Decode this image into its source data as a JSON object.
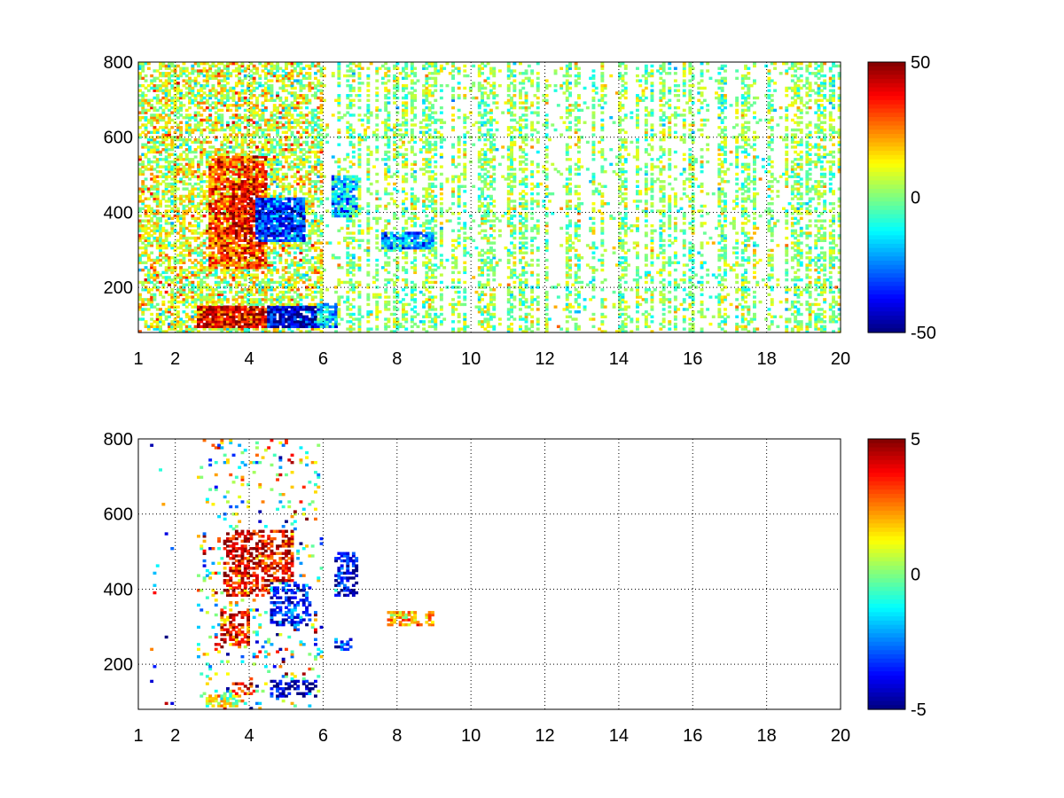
{
  "chart_data": [
    {
      "type": "heatmap",
      "title": "",
      "xlabel": "",
      "ylabel": "",
      "xlim": [
        1,
        20
      ],
      "ylim": [
        80,
        800
      ],
      "xticks": [
        1,
        2,
        4,
        6,
        8,
        10,
        12,
        14,
        16,
        18,
        20
      ],
      "yticks": [
        200,
        400,
        600,
        800
      ],
      "grid": true,
      "grid_x": [
        2,
        4,
        6,
        8,
        10,
        12,
        14,
        16,
        18,
        20
      ],
      "colormap": "jet",
      "colorbar": {
        "range": [
          -50,
          50
        ],
        "ticks": [
          50,
          0,
          -50
        ]
      },
      "density": "dense",
      "features": [
        {
          "x0": 2.9,
          "x1": 4.5,
          "y0": 250,
          "y1": 550,
          "value": 30
        },
        {
          "x0": 3.5,
          "x1": 4.2,
          "y0": 320,
          "y1": 480,
          "value": 38
        },
        {
          "x0": 4.2,
          "x1": 5.5,
          "y0": 320,
          "y1": 440,
          "value": -32
        },
        {
          "x0": 4.5,
          "x1": 5.8,
          "y0": 90,
          "y1": 150,
          "value": -42
        },
        {
          "x0": 2.6,
          "x1": 4.5,
          "y0": 90,
          "y1": 150,
          "value": 40
        },
        {
          "x0": 5.8,
          "x1": 6.4,
          "y0": 90,
          "y1": 160,
          "value": -20
        },
        {
          "x0": 7.6,
          "x1": 9.0,
          "y0": 300,
          "y1": 350,
          "value": -22
        },
        {
          "x0": 6.2,
          "x1": 6.9,
          "y0": 390,
          "y1": 500,
          "value": -16
        }
      ]
    },
    {
      "type": "heatmap",
      "title": "",
      "xlabel": "",
      "ylabel": "",
      "xlim": [
        1,
        20
      ],
      "ylim": [
        80,
        800
      ],
      "xticks": [
        1,
        2,
        4,
        6,
        8,
        10,
        12,
        14,
        16,
        18,
        20
      ],
      "yticks": [
        200,
        400,
        600,
        800
      ],
      "grid": true,
      "grid_x": [
        2,
        4,
        6,
        8,
        10,
        12,
        14,
        16,
        18,
        20
      ],
      "colormap": "jet",
      "colorbar": {
        "range": [
          -5,
          5
        ],
        "ticks": [
          5,
          0,
          -5
        ]
      },
      "density": "sparse",
      "features": [
        {
          "x0": 3.3,
          "x1": 5.2,
          "y0": 380,
          "y1": 560,
          "value": 4
        },
        {
          "x0": 4.6,
          "x1": 5.7,
          "y0": 300,
          "y1": 420,
          "value": -3.5
        },
        {
          "x0": 3.2,
          "x1": 4.0,
          "y0": 250,
          "y1": 350,
          "value": 3.5
        },
        {
          "x0": 3.5,
          "x1": 4.2,
          "y0": 120,
          "y1": 150,
          "value": 4.5
        },
        {
          "x0": 4.6,
          "x1": 5.8,
          "y0": 110,
          "y1": 160,
          "value": -4.5
        },
        {
          "x0": 2.8,
          "x1": 3.8,
          "y0": 85,
          "y1": 120,
          "value": 0.8
        },
        {
          "x0": 6.3,
          "x1": 6.9,
          "y0": 380,
          "y1": 500,
          "value": -4
        },
        {
          "x0": 7.7,
          "x1": 9.0,
          "y0": 300,
          "y1": 340,
          "value": 2
        },
        {
          "x0": 6.3,
          "x1": 6.8,
          "y0": 240,
          "y1": 270,
          "value": -3.5
        }
      ]
    }
  ]
}
